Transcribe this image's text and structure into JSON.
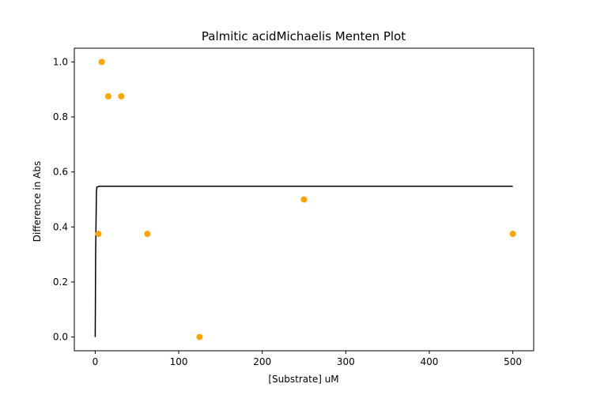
{
  "chart_data": {
    "type": "scatter",
    "title": "Palmitic acidMichaelis Menten Plot",
    "xlabel": "[Substrate] uM",
    "ylabel": "Difference in Abs",
    "xlim": [
      -25,
      525
    ],
    "ylim": [
      -0.05,
      1.05
    ],
    "x_ticks": [
      0,
      100,
      200,
      300,
      400,
      500
    ],
    "x_tick_labels": [
      "0",
      "100",
      "200",
      "300",
      "400",
      "500"
    ],
    "y_ticks": [
      0.0,
      0.2,
      0.4,
      0.6,
      0.8,
      1.0
    ],
    "y_tick_labels": [
      "0.0",
      "0.2",
      "0.4",
      "0.6",
      "0.8",
      "1.0"
    ],
    "grid": false,
    "series": [
      {
        "kind": "scatter",
        "color": "#ffa500",
        "points": [
          {
            "x": 3.9,
            "y": 0.375
          },
          {
            "x": 7.8,
            "y": 1.0
          },
          {
            "x": 15.6,
            "y": 0.875
          },
          {
            "x": 31.25,
            "y": 0.875
          },
          {
            "x": 62.5,
            "y": 0.375
          },
          {
            "x": 125,
            "y": 0.0
          },
          {
            "x": 250,
            "y": 0.5
          },
          {
            "x": 500,
            "y": 0.375
          }
        ]
      },
      {
        "kind": "line",
        "color": "#000000",
        "points": [
          {
            "x": 0,
            "y": 0.0
          },
          {
            "x": 0.2,
            "y": 0.1
          },
          {
            "x": 0.5,
            "y": 0.3
          },
          {
            "x": 1,
            "y": 0.42
          },
          {
            "x": 1.5,
            "y": 0.53
          },
          {
            "x": 2,
            "y": 0.545
          },
          {
            "x": 5,
            "y": 0.548
          },
          {
            "x": 100,
            "y": 0.548
          },
          {
            "x": 500,
            "y": 0.548
          }
        ]
      }
    ]
  }
}
